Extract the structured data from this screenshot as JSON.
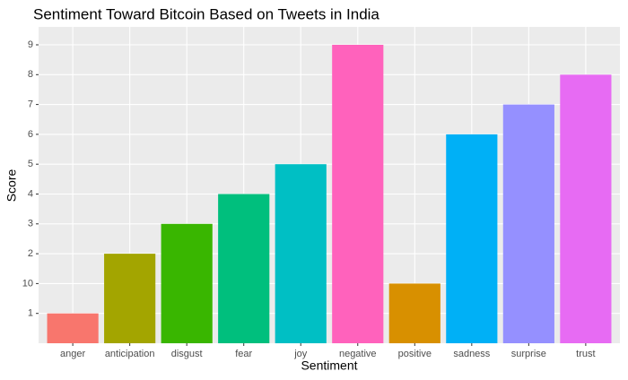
{
  "chart_data": {
    "type": "bar",
    "title": "Sentiment Toward Bitcoin Based on Tweets in India",
    "x_label": "Sentiment",
    "y_label": "Score",
    "categories": [
      "anger",
      "anticipation",
      "disgust",
      "fear",
      "joy",
      "negative",
      "positive",
      "sadness",
      "surprise",
      "trust"
    ],
    "values": [
      1,
      2,
      3,
      4,
      5,
      9,
      10,
      6,
      7,
      8
    ],
    "colors": [
      "#F8766D",
      "#A3A500",
      "#39B600",
      "#00BF7D",
      "#00BFC4",
      "#FF62BC",
      "#D89000",
      "#00B0F6",
      "#9590FF",
      "#E76BF3"
    ],
    "y_categories": [
      "1",
      "10",
      "2",
      "3",
      "4",
      "5",
      "6",
      "7",
      "8",
      "9"
    ],
    "grid": true
  }
}
